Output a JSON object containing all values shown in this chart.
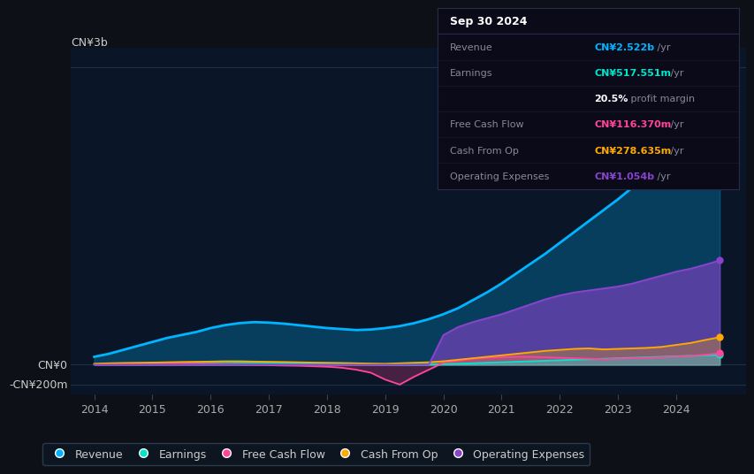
{
  "bg_color": "#0d1117",
  "plot_bg_color": "#0a1628",
  "colors": {
    "revenue": "#00b4ff",
    "earnings": "#00e5cc",
    "free_cash_flow": "#ff4499",
    "cash_from_op": "#ffaa00",
    "operating_expenses": "#8844cc"
  },
  "legend": [
    {
      "label": "Revenue",
      "color": "#00b4ff"
    },
    {
      "label": "Earnings",
      "color": "#00e5cc"
    },
    {
      "label": "Free Cash Flow",
      "color": "#ff4499"
    },
    {
      "label": "Cash From Op",
      "color": "#ffaa00"
    },
    {
      "label": "Operating Expenses",
      "color": "#8844cc"
    }
  ],
  "xticks": [
    2014,
    2015,
    2016,
    2017,
    2018,
    2019,
    2020,
    2021,
    2022,
    2023,
    2024
  ],
  "ylabel_top": "CN¥3b",
  "ylabel_zero": "CN¥0",
  "ylabel_neg": "-CN¥200m",
  "grid_color": "#1e3045",
  "info_title": "Sep 30 2024",
  "info_rows": [
    {
      "label": "Revenue",
      "value": "CN¥2.522b",
      "suffix": " /yr",
      "color": "#00b4ff"
    },
    {
      "label": "Earnings",
      "value": "CN¥517.551m",
      "suffix": " /yr",
      "color": "#00e5cc"
    },
    {
      "label": "",
      "value": "20.5%",
      "suffix": " profit margin",
      "color": "#ffffff"
    },
    {
      "label": "Free Cash Flow",
      "value": "CN¥116.370m",
      "suffix": " /yr",
      "color": "#ff4499"
    },
    {
      "label": "Cash From Op",
      "value": "CN¥278.635m",
      "suffix": " /yr",
      "color": "#ffaa00"
    },
    {
      "label": "Operating Expenses",
      "value": "CN¥1.054b",
      "suffix": " /yr",
      "color": "#8844cc"
    }
  ]
}
